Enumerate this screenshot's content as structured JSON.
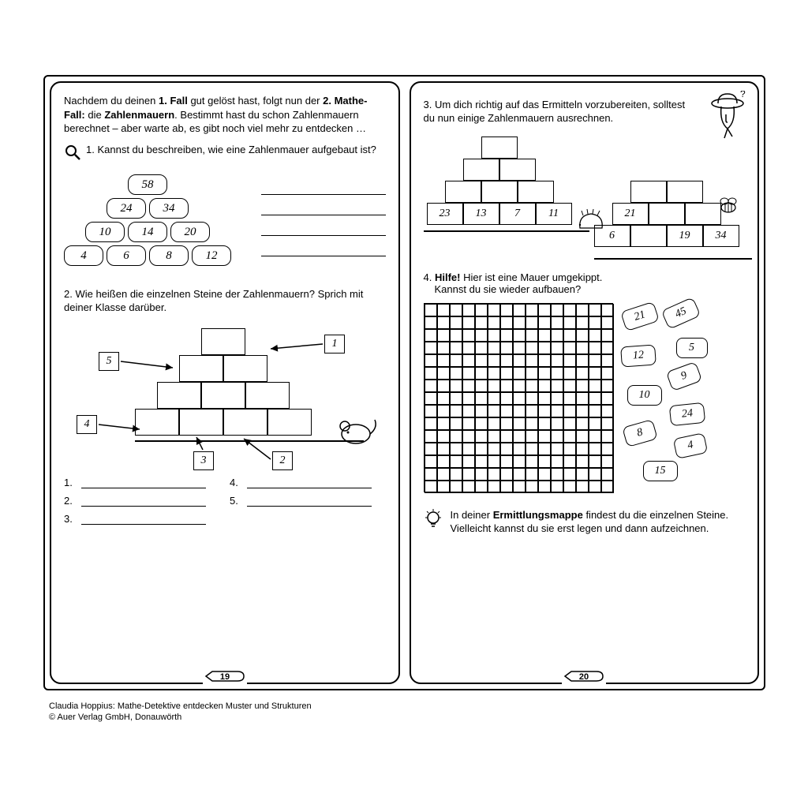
{
  "page_left": {
    "intro_html": "Nachdem du deinen <b>1. Fall</b> gut gelöst hast, folgt nun der <b>2. Mathe-Fall:</b> die <b>Zahlenmauern</b>. Bestimmt hast du schon Zahlenmauern berechnet – aber warte ab, es gibt noch viel mehr zu entdecken …",
    "q1": "1. Kannst du beschreiben, wie eine Zahlenmauer aufgebaut ist?",
    "wall1": {
      "brick_w": 50,
      "brick_h": 26,
      "gap": 4,
      "rows": [
        [
          "58"
        ],
        [
          "24",
          "34"
        ],
        [
          "10",
          "14",
          "20"
        ],
        [
          "4",
          "6",
          "8",
          "12"
        ]
      ]
    },
    "q2": "2. Wie heißen die einzelnen Steine der Zahlenmauern? Sprich mit deiner Klasse darüber.",
    "labels": [
      "1",
      "2",
      "3",
      "4",
      "5"
    ],
    "blanks": [
      "1.",
      "2.",
      "3.",
      "4.",
      "5."
    ],
    "page_number": "19"
  },
  "page_right": {
    "q3": "3. Um dich richtig auf das Ermitteln vorzubereiten, solltest du nun einige Zahlenmauern ausrechnen.",
    "wall2_bottom": [
      "23",
      "13",
      "7",
      "11"
    ],
    "wall3_row2": [
      "21"
    ],
    "wall3_row3": [
      "6",
      "",
      "19",
      "34"
    ],
    "q4_line1": "4. Hilfe! Hier ist eine Mauer umgekippt.",
    "q4_line2": "Kannst du sie wieder aufbauen?",
    "grid": {
      "cols": 15,
      "rows": 15,
      "cell": 16
    },
    "tiles": [
      "21",
      "45",
      "12",
      "5",
      "9",
      "10",
      "24",
      "8",
      "4",
      "15"
    ],
    "hint": "In deiner <b>Ermittlungsmappe</b> findest du die einzelnen Steine. Vielleicht kannst du sie erst legen und dann aufzeichnen.",
    "page_number": "20"
  },
  "credits": {
    "l1": "Claudia Hoppius: Mathe-Detektive entdecken Muster und Strukturen",
    "l2": "© Auer Verlag GmbH, Donauwörth"
  },
  "colors": {
    "fg": "#000000",
    "bg": "#ffffff"
  }
}
